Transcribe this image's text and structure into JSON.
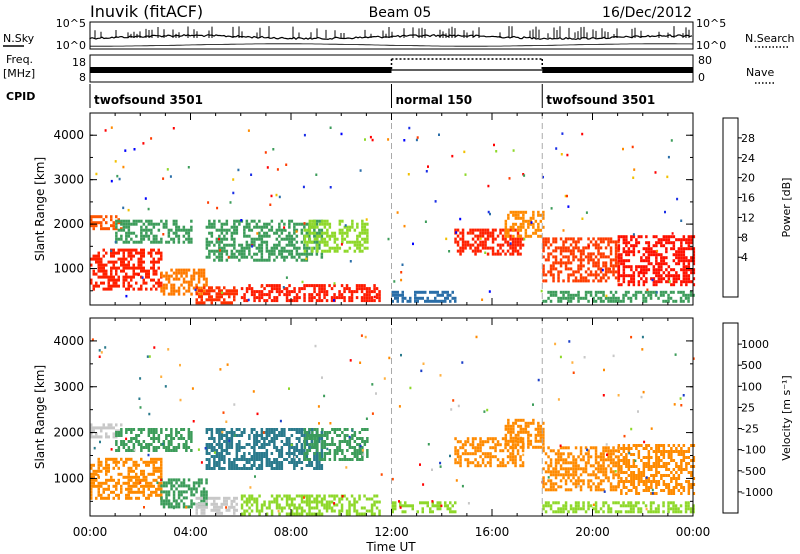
{
  "header": {
    "title": "Inuvik (fitACF)",
    "beam": "Beam 05",
    "date": "16/Dec/2012"
  },
  "params": {
    "nsky_label": "N.Sky",
    "nsky_ticks": [
      "10^5",
      "10^0"
    ],
    "nsearch_label": "N.Search",
    "nsearch_ticks": [
      "10^5",
      "10^0"
    ],
    "freq_label_line1": "Freq.",
    "freq_label_line2": "[MHz]",
    "freq_ticks": [
      "18",
      "8"
    ],
    "nave_label": "Nave",
    "nave_ticks": [
      "80",
      "0"
    ],
    "cpid_label": "CPID"
  },
  "chart_data": {
    "type": "heatmap",
    "cpid_segments": [
      {
        "label": "twofsound 3501",
        "start_hour": 0,
        "end_hour": 12
      },
      {
        "label": "normal 150",
        "start_hour": 12,
        "end_hour": 18
      },
      {
        "label": "twofsound 3501",
        "start_hour": 18,
        "end_hour": 24
      }
    ],
    "x_ticks": [
      "00:00",
      "04:00",
      "08:00",
      "12:00",
      "16:00",
      "20:00",
      "00:00"
    ],
    "xlabel": "Time UT",
    "xlim_hours": [
      0,
      24
    ],
    "panels": [
      {
        "name": "power",
        "ylabel": "Slant Range [km]",
        "y_ticks": [
          "1000",
          "2000",
          "3000",
          "4000"
        ],
        "ylim_km": [
          180,
          4500
        ],
        "colorbar_label": "Power [dB]",
        "colorbar_ticks": [
          "28",
          "24",
          "20",
          "16",
          "12",
          "8",
          "4"
        ],
        "colorbar_colors": [
          "#ff0000",
          "#ff3c00",
          "#ff8a00",
          "#f2c000",
          "#8ed82a",
          "#3c9c5a",
          "#2a6ea8",
          "#1a2ee6",
          "#0000ff"
        ],
        "regions": [
          {
            "h0": 0.0,
            "h1": 2.8,
            "r0": 550,
            "r1": 1450,
            "color": "#ff2000"
          },
          {
            "h0": 2.8,
            "h1": 4.6,
            "r0": 400,
            "r1": 1000,
            "color": "#ff7a00"
          },
          {
            "h0": 0.0,
            "h1": 1.2,
            "r0": 1900,
            "r1": 2200,
            "color": "#ff5500"
          },
          {
            "h0": 1.0,
            "h1": 4.0,
            "r0": 1600,
            "r1": 2100,
            "color": "#3c9c5a"
          },
          {
            "h0": 4.2,
            "h1": 5.8,
            "r0": 250,
            "r1": 600,
            "color": "#ff3000"
          },
          {
            "h0": 6.0,
            "h1": 11.5,
            "r0": 250,
            "r1": 650,
            "color": "#ff1a00"
          },
          {
            "h0": 4.6,
            "h1": 9.2,
            "r0": 1200,
            "r1": 2100,
            "color": "#3c9c5a"
          },
          {
            "h0": 8.5,
            "h1": 11.0,
            "r0": 1400,
            "r1": 2100,
            "color": "#8ed82a"
          },
          {
            "h0": 12.0,
            "h1": 14.5,
            "r0": 250,
            "r1": 500,
            "color": "#2a6ea8"
          },
          {
            "h0": 14.5,
            "h1": 17.2,
            "r0": 1300,
            "r1": 1900,
            "color": "#ff2000"
          },
          {
            "h0": 16.5,
            "h1": 18.0,
            "r0": 1700,
            "r1": 2300,
            "color": "#ff8a00"
          },
          {
            "h0": 18.0,
            "h1": 21.0,
            "r0": 750,
            "r1": 1700,
            "color": "#ff3c00"
          },
          {
            "h0": 21.0,
            "h1": 24.0,
            "r0": 650,
            "r1": 1750,
            "color": "#ff1000"
          },
          {
            "h0": 18.0,
            "h1": 24.0,
            "r0": 250,
            "r1": 500,
            "color": "#3c9c5a"
          }
        ]
      },
      {
        "name": "velocity",
        "ylabel": "Slant Range [km]",
        "y_ticks": [
          "1000",
          "2000",
          "3000",
          "4000"
        ],
        "ylim_km": [
          180,
          4500
        ],
        "colorbar_label": "Velocity [m s⁻¹]",
        "colorbar_ticks": [
          "1000",
          "500",
          "100",
          "25",
          "-25",
          "-100",
          "-500",
          "-1000"
        ],
        "colorbar_colors": [
          "#1a3ec8",
          "#2a7a8c",
          "#3c9c5a",
          "#8ed82a",
          "#c8c8c8",
          "#ffb040",
          "#ff8a00",
          "#ff4a00",
          "#ff0000"
        ],
        "regions": [
          {
            "h0": 0.0,
            "h1": 2.8,
            "r0": 550,
            "r1": 1450,
            "color": "#ff8a00"
          },
          {
            "h0": 2.8,
            "h1": 4.6,
            "r0": 400,
            "r1": 1000,
            "color": "#3c9c5a"
          },
          {
            "h0": 0.0,
            "h1": 1.2,
            "r0": 1900,
            "r1": 2200,
            "color": "#c8c8c8"
          },
          {
            "h0": 1.0,
            "h1": 4.0,
            "r0": 1600,
            "r1": 2100,
            "color": "#3c9c5a"
          },
          {
            "h0": 4.2,
            "h1": 5.8,
            "r0": 250,
            "r1": 600,
            "color": "#c8c8c8"
          },
          {
            "h0": 6.0,
            "h1": 11.5,
            "r0": 250,
            "r1": 650,
            "color": "#8ed82a"
          },
          {
            "h0": 4.6,
            "h1": 9.2,
            "r0": 1200,
            "r1": 2100,
            "color": "#2a7a8c"
          },
          {
            "h0": 8.5,
            "h1": 11.0,
            "r0": 1400,
            "r1": 2100,
            "color": "#3c9c5a"
          },
          {
            "h0": 12.0,
            "h1": 14.5,
            "r0": 250,
            "r1": 500,
            "color": "#8ed82a"
          },
          {
            "h0": 14.5,
            "h1": 17.2,
            "r0": 1300,
            "r1": 1900,
            "color": "#ff8a00"
          },
          {
            "h0": 16.5,
            "h1": 18.0,
            "r0": 1700,
            "r1": 2300,
            "color": "#ff8a00"
          },
          {
            "h0": 18.0,
            "h1": 21.0,
            "r0": 750,
            "r1": 1700,
            "color": "#ff8a00"
          },
          {
            "h0": 21.0,
            "h1": 24.0,
            "r0": 650,
            "r1": 1750,
            "color": "#ff8a00"
          },
          {
            "h0": 18.0,
            "h1": 24.0,
            "r0": 250,
            "r1": 500,
            "color": "#8ed82a"
          }
        ]
      }
    ]
  }
}
